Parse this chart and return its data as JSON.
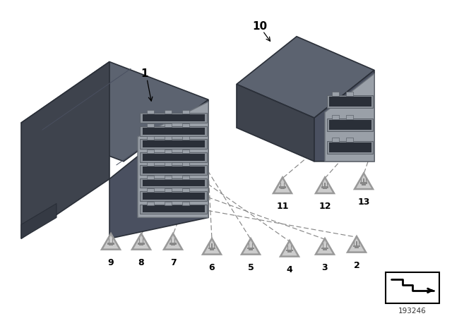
{
  "background_color": "#ffffff",
  "fig_number": "193246",
  "main_unit_label": "1",
  "small_unit_label": "10",
  "connector_labels_bottom": [
    "9",
    "8",
    "7",
    "6",
    "5",
    "4",
    "3",
    "2"
  ],
  "connector_labels_right": [
    "11",
    "12",
    "13"
  ],
  "line_color": "#888888",
  "label_color": "#000000",
  "triangle_fill": "#cccccc",
  "triangle_edge": "#999999",
  "plug_icon_color": "#888888",
  "main_top_color": "#5c6370",
  "main_top_light": "#6e7580",
  "main_left_color": "#3e434d",
  "main_right_color": "#4a5060",
  "conn_body_color": "#9aa0a8",
  "conn_slot_color": "#7a8088",
  "conn_slot_dark": "#2a2f38",
  "small_top_color": "#5c6370",
  "small_left_color": "#3e434d",
  "small_right_color": "#4a5060"
}
